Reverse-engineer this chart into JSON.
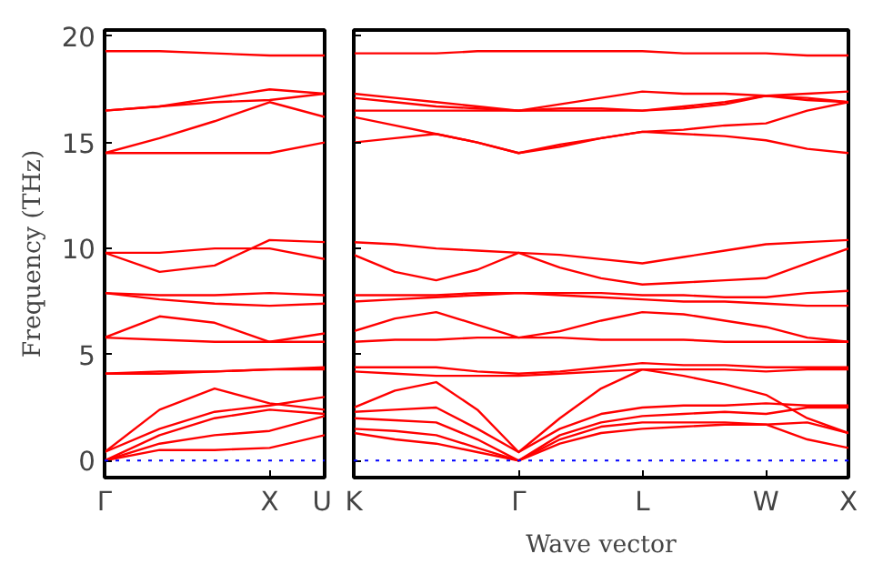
{
  "chart_data": [
    {
      "type": "line",
      "ylabel": "Frequency (THz)",
      "categories": [
        "Γ",
        null,
        null,
        "X",
        "U"
      ],
      "ylim": [
        -0.8,
        20.3
      ],
      "yticks": [
        0,
        5,
        10,
        15,
        20
      ],
      "grid": false,
      "line_style": "solid",
      "ref_lines": [
        {
          "axis": "y",
          "value": 0,
          "label": null,
          "color": "#0000ff",
          "line_style": "dotted"
        }
      ],
      "series": [
        {
          "color": "#ff0000",
          "values": [
            0,
            0.5,
            0.5,
            0.6,
            1.2
          ]
        },
        {
          "color": "#ff0000",
          "values": [
            0,
            0.8,
            1.2,
            1.4,
            2.1
          ]
        },
        {
          "color": "#ff0000",
          "values": [
            0,
            1.2,
            2.0,
            2.4,
            2.2
          ]
        },
        {
          "color": "#ff0000",
          "values": [
            0.4,
            2.4,
            3.4,
            2.7,
            2.4
          ]
        },
        {
          "color": "#ff0000",
          "values": [
            0.4,
            1.5,
            2.3,
            2.6,
            3.0
          ]
        },
        {
          "color": "#ff0000",
          "values": [
            4.1,
            4.2,
            4.2,
            4.3,
            4.3
          ]
        },
        {
          "color": "#ff0000",
          "values": [
            4.1,
            4.1,
            4.2,
            4.3,
            4.4
          ]
        },
        {
          "color": "#ff0000",
          "values": [
            5.8,
            5.7,
            5.6,
            5.6,
            5.6
          ]
        },
        {
          "color": "#ff0000",
          "values": [
            5.8,
            6.8,
            6.5,
            5.6,
            6.0
          ]
        },
        {
          "color": "#ff0000",
          "values": [
            7.9,
            7.8,
            7.8,
            7.9,
            7.8
          ]
        },
        {
          "color": "#ff0000",
          "values": [
            7.9,
            7.6,
            7.4,
            7.3,
            7.4
          ]
        },
        {
          "color": "#ff0000",
          "values": [
            9.8,
            8.9,
            9.2,
            10.4,
            10.3
          ]
        },
        {
          "color": "#ff0000",
          "values": [
            9.8,
            9.8,
            10.0,
            10.0,
            9.5
          ]
        },
        {
          "color": "#ff0000",
          "values": [
            14.5,
            14.5,
            14.5,
            14.5,
            15.0
          ]
        },
        {
          "color": "#ff0000",
          "values": [
            14.5,
            15.2,
            16.0,
            16.9,
            16.2
          ]
        },
        {
          "color": "#ff0000",
          "values": [
            16.5,
            16.7,
            16.9,
            17.0,
            17.3
          ]
        },
        {
          "color": "#ff0000",
          "values": [
            16.5,
            16.7,
            17.1,
            17.5,
            17.3
          ]
        },
        {
          "color": "#ff0000",
          "values": [
            19.3,
            19.3,
            19.2,
            19.1,
            19.1
          ]
        }
      ]
    },
    {
      "type": "line",
      "xlabel": "Wave vector",
      "categories": [
        "K",
        null,
        null,
        null,
        "Γ",
        null,
        null,
        "L",
        null,
        null,
        "W",
        null,
        "X"
      ],
      "ylim": [
        -0.8,
        20.3
      ],
      "yticks": [
        {
          "value": 0,
          "label": null
        },
        {
          "value": 5,
          "label": null
        },
        {
          "value": 10,
          "label": null
        },
        {
          "value": 15,
          "label": null
        },
        {
          "value": 20,
          "label": null
        }
      ],
      "tick_labels": "x",
      "grid": false,
      "line_style": "solid",
      "ref_lines": [
        {
          "axis": "y",
          "value": 0,
          "label": null,
          "color": "#0000ff",
          "line_style": "dotted"
        }
      ],
      "series": [
        {
          "color": "#ff0000",
          "values": [
            1.3,
            1.0,
            0.8,
            0.4,
            0,
            0.8,
            1.3,
            1.5,
            1.6,
            1.7,
            1.7,
            1.0,
            0.6
          ]
        },
        {
          "color": "#ff0000",
          "values": [
            1.5,
            1.4,
            1.2,
            0.6,
            0,
            1.0,
            1.6,
            1.8,
            1.8,
            1.8,
            1.7,
            1.8,
            1.3
          ]
        },
        {
          "color": "#ff0000",
          "values": [
            2.0,
            1.9,
            1.8,
            1.0,
            0,
            1.2,
            1.8,
            2.1,
            2.2,
            2.3,
            2.2,
            2.5,
            2.5
          ]
        },
        {
          "color": "#ff0000",
          "values": [
            2.3,
            2.4,
            2.5,
            1.5,
            0.4,
            1.5,
            2.2,
            2.5,
            2.6,
            2.6,
            2.7,
            2.6,
            2.6
          ]
        },
        {
          "color": "#ff0000",
          "values": [
            2.5,
            3.3,
            3.7,
            2.4,
            0.4,
            2.0,
            3.4,
            4.3,
            4.0,
            3.6,
            3.1,
            2.0,
            1.3
          ]
        },
        {
          "color": "#ff0000",
          "values": [
            4.2,
            4.1,
            4.0,
            4.0,
            4.0,
            4.1,
            4.2,
            4.3,
            4.3,
            4.3,
            4.2,
            4.3,
            4.3
          ]
        },
        {
          "color": "#ff0000",
          "values": [
            4.4,
            4.4,
            4.4,
            4.2,
            4.1,
            4.2,
            4.4,
            4.6,
            4.5,
            4.5,
            4.4,
            4.4,
            4.4
          ]
        },
        {
          "color": "#ff0000",
          "values": [
            5.6,
            5.7,
            5.7,
            5.8,
            5.8,
            5.8,
            5.7,
            5.7,
            5.7,
            5.6,
            5.6,
            5.6,
            5.6
          ]
        },
        {
          "color": "#ff0000",
          "values": [
            6.1,
            6.7,
            7.0,
            6.4,
            5.8,
            6.1,
            6.6,
            7.0,
            6.9,
            6.6,
            6.3,
            5.8,
            5.6
          ]
        },
        {
          "color": "#ff0000",
          "values": [
            7.5,
            7.6,
            7.7,
            7.8,
            7.9,
            7.8,
            7.7,
            7.6,
            7.5,
            7.5,
            7.4,
            7.3,
            7.3
          ]
        },
        {
          "color": "#ff0000",
          "values": [
            7.8,
            7.8,
            7.8,
            7.9,
            7.9,
            7.9,
            7.9,
            7.8,
            7.8,
            7.7,
            7.7,
            7.9,
            8.0
          ]
        },
        {
          "color": "#ff0000",
          "values": [
            9.7,
            8.9,
            8.5,
            9.0,
            9.8,
            9.1,
            8.6,
            8.3,
            8.4,
            8.5,
            8.6,
            9.3,
            10.0
          ]
        },
        {
          "color": "#ff0000",
          "values": [
            10.3,
            10.2,
            10.0,
            9.9,
            9.8,
            9.7,
            9.5,
            9.3,
            9.6,
            9.9,
            10.2,
            10.3,
            10.4
          ]
        },
        {
          "color": "#ff0000",
          "values": [
            15.0,
            15.2,
            15.4,
            15.0,
            14.5,
            14.9,
            15.2,
            15.5,
            15.4,
            15.3,
            15.1,
            14.7,
            14.5
          ]
        },
        {
          "color": "#ff0000",
          "values": [
            16.2,
            15.8,
            15.4,
            15.0,
            14.5,
            14.8,
            15.2,
            15.5,
            15.6,
            15.8,
            15.9,
            16.5,
            16.9
          ]
        },
        {
          "color": "#ff0000",
          "values": [
            16.5,
            16.5,
            16.5,
            16.5,
            16.5,
            16.5,
            16.5,
            16.5,
            16.7,
            16.9,
            17.2,
            17.1,
            16.9
          ]
        },
        {
          "color": "#ff0000",
          "values": [
            17.1,
            16.9,
            16.7,
            16.6,
            16.5,
            16.8,
            17.1,
            17.4,
            17.3,
            17.3,
            17.2,
            17.3,
            17.4
          ]
        },
        {
          "color": "#ff0000",
          "values": [
            17.3,
            17.1,
            16.9,
            16.7,
            16.5,
            16.6,
            16.6,
            16.5,
            16.6,
            16.8,
            17.2,
            17.0,
            16.9
          ]
        },
        {
          "color": "#ff0000",
          "values": [
            19.2,
            19.2,
            19.2,
            19.3,
            19.3,
            19.3,
            19.3,
            19.3,
            19.2,
            19.2,
            19.2,
            19.1,
            19.1
          ]
        }
      ]
    }
  ]
}
